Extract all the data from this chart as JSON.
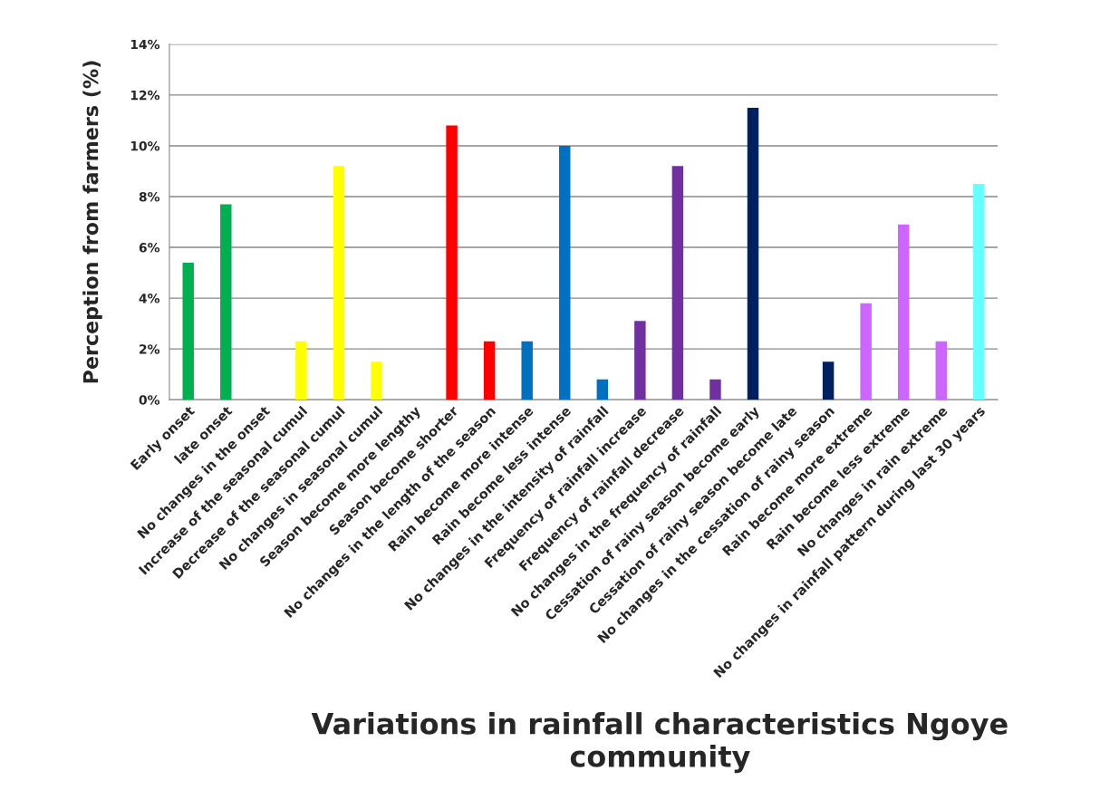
{
  "chart_data": {
    "type": "bar",
    "xlabel": "Variations in rainfall characteristics Ngoye community",
    "ylabel": "Perception from farmers (%)",
    "categories": [
      "Early onset",
      "late onset",
      "No changes in the onset",
      "Increase of the seasonal cumul",
      "Decrease of the seasonal cumul",
      "No changes in seasonal cumul",
      "Season become more lengthy",
      "Season become shorter",
      "No changes in the length of the season",
      "Rain become more intense",
      "Rain become less intense",
      "No changes in the intensity of rainfall",
      "Frequency of rainfall increase",
      "Frequency of rainfall decrease",
      "No changes in the frequency of rainfall",
      "Cessation of rainy season become early",
      "Cessation of rainy season become late",
      "No changes in the cessation of rainy season",
      "Rain become more extreme",
      "Rain become less extreme",
      "No changes in rain extreme",
      "No changes in rainfall pattern during last 30 years"
    ],
    "values": [
      5.4,
      7.7,
      0,
      2.3,
      9.2,
      1.5,
      0,
      10.8,
      2.3,
      2.3,
      10.0,
      0.8,
      3.1,
      9.2,
      0.8,
      11.5,
      0,
      1.5,
      3.8,
      6.9,
      2.3,
      8.5
    ],
    "colors": [
      "#00b050",
      "#00b050",
      "#00b050",
      "#ffff00",
      "#ffff00",
      "#ffff00",
      "#ff0000",
      "#ff0000",
      "#ff0000",
      "#0070c0",
      "#0070c0",
      "#0070c0",
      "#7030a0",
      "#7030a0",
      "#7030a0",
      "#002060",
      "#002060",
      "#002060",
      "#cc66ff",
      "#cc66ff",
      "#cc66ff",
      "#66ffff"
    ],
    "ylim": [
      0,
      14
    ],
    "yticks": [
      {
        "value": 0,
        "label": "0%"
      },
      {
        "value": 2,
        "label": "2%"
      },
      {
        "value": 4,
        "label": "4%"
      },
      {
        "value": 6,
        "label": "6%"
      },
      {
        "value": 8,
        "label": "8%"
      },
      {
        "value": 10,
        "label": "10%"
      },
      {
        "value": 12,
        "label": "12%"
      },
      {
        "value": 14,
        "label": "14%"
      }
    ],
    "grid": "y",
    "legend": false
  }
}
